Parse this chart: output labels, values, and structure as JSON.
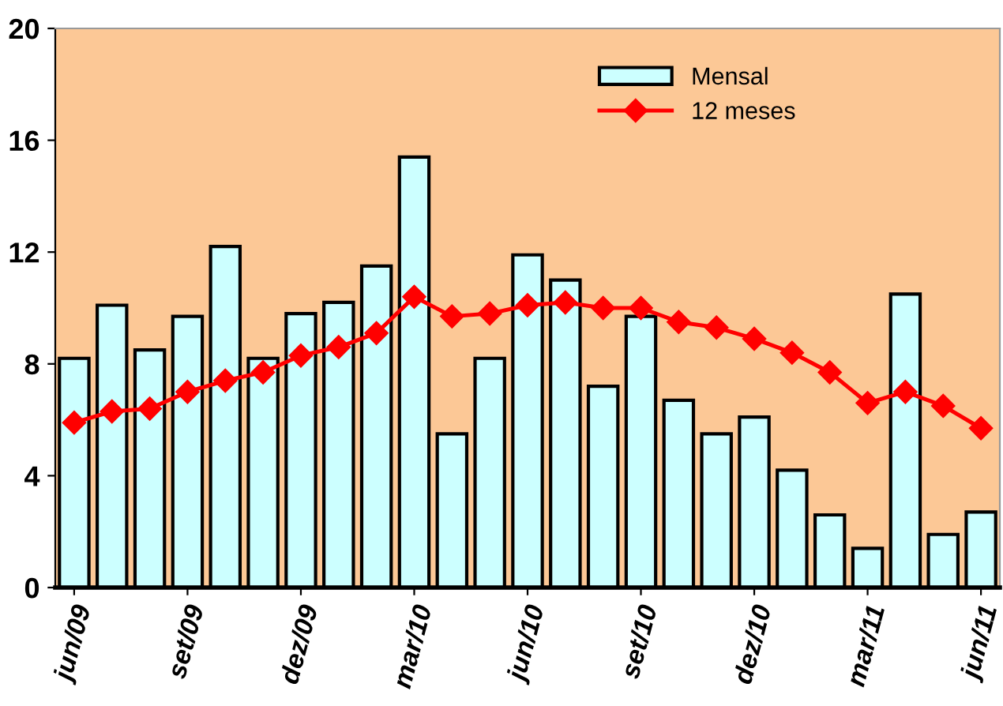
{
  "chart_data": {
    "type": "bar",
    "categories": [
      "jun/09",
      null,
      null,
      "set/09",
      null,
      null,
      "dez/09",
      null,
      null,
      "mar/10",
      null,
      null,
      "jun/10",
      null,
      null,
      "set/10",
      null,
      null,
      "dez/10",
      null,
      null,
      "mar/11",
      null,
      null,
      "jun/11"
    ],
    "series": [
      {
        "name": "Mensal",
        "color": "#ccffff",
        "values": [
          8.2,
          10.1,
          8.5,
          9.7,
          12.2,
          8.2,
          9.8,
          10.2,
          11.5,
          15.4,
          5.5,
          8.2,
          11.9,
          11.0,
          7.2,
          9.7,
          6.7,
          5.5,
          6.1,
          4.2,
          2.6,
          1.4,
          10.5,
          1.9,
          2.7
        ]
      },
      {
        "name": "12 meses",
        "type": "line",
        "color": "#ff0000",
        "marker": "diamond",
        "values": [
          5.9,
          6.3,
          6.4,
          7.0,
          7.4,
          7.7,
          8.3,
          8.6,
          9.1,
          10.4,
          9.7,
          9.8,
          10.1,
          10.2,
          10.0,
          10.0,
          9.5,
          9.3,
          8.9,
          8.4,
          7.7,
          6.6,
          7.0,
          6.5,
          5.7
        ]
      }
    ],
    "ylim": [
      0,
      20
    ],
    "yticks": [
      0,
      4,
      8,
      12,
      16,
      20
    ],
    "grid": false,
    "legend": "top"
  }
}
